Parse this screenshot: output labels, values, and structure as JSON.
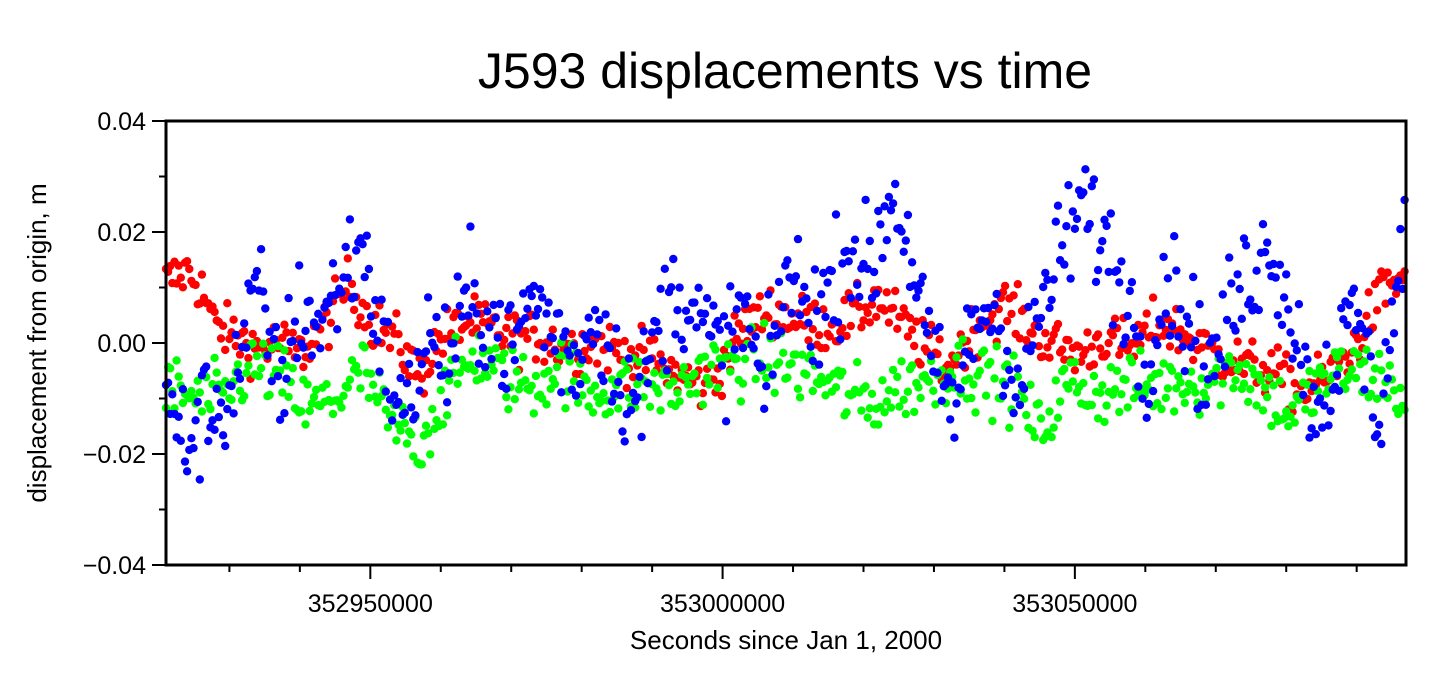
{
  "chart_data": {
    "type": "scatter",
    "title": "J593 displacements vs time",
    "xlabel": "Seconds since Jan 1, 2000",
    "ylabel": "displacement from origin, m",
    "xlim": [
      352921000,
      353097000
    ],
    "ylim": [
      -0.04,
      0.04
    ],
    "x_ticks": [
      352950000,
      353000000,
      353050000
    ],
    "x_tick_labels": [
      "352950000",
      "353000000",
      "353050000"
    ],
    "x_minor_step": 10000,
    "y_ticks": [
      -0.04,
      -0.02,
      0.0,
      0.02,
      0.04
    ],
    "y_tick_labels": [
      "−0.04",
      "−0.02",
      "0.00",
      "0.02",
      "0.04"
    ],
    "y_minor_step": 0.01,
    "grid": false,
    "legend": "none",
    "sample_interval_s": 300,
    "series": [
      {
        "color": "#ff0000",
        "anchors": [
          [
            352921000,
            0.011
          ],
          [
            352924000,
            0.013
          ],
          [
            352926000,
            0.01
          ],
          [
            352928000,
            0.003
          ],
          [
            352931000,
            0.001
          ],
          [
            352934000,
            -0.001
          ],
          [
            352937000,
            0.0
          ],
          [
            352940000,
            -0.002
          ],
          [
            352944000,
            0.004
          ],
          [
            352947000,
            0.011
          ],
          [
            352950000,
            0.004
          ],
          [
            352954000,
            0.0
          ],
          [
            352957000,
            -0.006
          ],
          [
            352960000,
            0.001
          ],
          [
            352964000,
            0.004
          ],
          [
            352968000,
            0.002
          ],
          [
            352971000,
            0.001
          ],
          [
            352974000,
            0.001
          ],
          [
            352978000,
            -0.001
          ],
          [
            352982000,
            0.0
          ],
          [
            352986000,
            -0.002
          ],
          [
            352990000,
            -0.003
          ],
          [
            352994000,
            -0.006
          ],
          [
            352998000,
            -0.008
          ],
          [
            353000000,
            -0.004
          ],
          [
            353003000,
            0.003
          ],
          [
            353007000,
            0.006
          ],
          [
            353011000,
            0.004
          ],
          [
            353015000,
            0.003
          ],
          [
            353019000,
            0.005
          ],
          [
            353022000,
            0.008
          ],
          [
            353025000,
            0.004
          ],
          [
            353028000,
            0.0
          ],
          [
            353032000,
            -0.004
          ],
          [
            353036000,
            0.003
          ],
          [
            353040000,
            0.007
          ],
          [
            353044000,
            0.002
          ],
          [
            353048000,
            -0.001
          ],
          [
            353051000,
            -0.002
          ],
          [
            353054000,
            0.001
          ],
          [
            353058000,
            -0.001
          ],
          [
            353062000,
            0.004
          ],
          [
            353066000,
            0.001
          ],
          [
            353070000,
            -0.002
          ],
          [
            353074000,
            -0.004
          ],
          [
            353078000,
            -0.005
          ],
          [
            353082000,
            -0.009
          ],
          [
            353086000,
            -0.006
          ],
          [
            353090000,
            0.0
          ],
          [
            353094000,
            0.01
          ],
          [
            353097000,
            0.012
          ]
        ],
        "noise": 0.0025
      },
      {
        "color": "#00ff00",
        "anchors": [
          [
            352921000,
            -0.008
          ],
          [
            352925000,
            -0.01
          ],
          [
            352929000,
            -0.01
          ],
          [
            352933000,
            -0.004
          ],
          [
            352937000,
            -0.006
          ],
          [
            352941000,
            -0.012
          ],
          [
            352945000,
            -0.01
          ],
          [
            352949000,
            -0.005
          ],
          [
            352953000,
            -0.015
          ],
          [
            352957000,
            -0.018
          ],
          [
            352961000,
            -0.008
          ],
          [
            352965000,
            -0.002
          ],
          [
            352969000,
            -0.006
          ],
          [
            352973000,
            -0.008
          ],
          [
            352977000,
            -0.004
          ],
          [
            352981000,
            -0.009
          ],
          [
            352985000,
            -0.008
          ],
          [
            352989000,
            -0.007
          ],
          [
            352993000,
            -0.009
          ],
          [
            352997000,
            -0.005
          ],
          [
            353001000,
            -0.004
          ],
          [
            353005000,
            -0.003
          ],
          [
            353009000,
            -0.004
          ],
          [
            353013000,
            -0.006
          ],
          [
            353017000,
            -0.009
          ],
          [
            353021000,
            -0.011
          ],
          [
            353025000,
            -0.008
          ],
          [
            353029000,
            -0.007
          ],
          [
            353033000,
            -0.004
          ],
          [
            353037000,
            -0.006
          ],
          [
            353041000,
            -0.008
          ],
          [
            353045000,
            -0.016
          ],
          [
            353049000,
            -0.007
          ],
          [
            353053000,
            -0.009
          ],
          [
            353057000,
            -0.008
          ],
          [
            353061000,
            -0.008
          ],
          [
            353065000,
            -0.007
          ],
          [
            353069000,
            -0.007
          ],
          [
            353073000,
            -0.004
          ],
          [
            353077000,
            -0.009
          ],
          [
            353081000,
            -0.013
          ],
          [
            353085000,
            -0.007
          ],
          [
            353089000,
            -0.005
          ],
          [
            353093000,
            -0.006
          ],
          [
            353097000,
            -0.01
          ]
        ],
        "noise": 0.0032
      },
      {
        "color": "#0000ff",
        "anchors": [
          [
            352921000,
            -0.012
          ],
          [
            352924000,
            -0.018
          ],
          [
            352927000,
            -0.012
          ],
          [
            352930000,
            -0.01
          ],
          [
            352934000,
            0.01
          ],
          [
            352937000,
            -0.008
          ],
          [
            352940000,
            0.006
          ],
          [
            352943000,
            0.003
          ],
          [
            352946000,
            0.012
          ],
          [
            352949000,
            0.018
          ],
          [
            352952000,
            -0.003
          ],
          [
            352955000,
            -0.014
          ],
          [
            352958000,
            0.002
          ],
          [
            352961000,
            -0.004
          ],
          [
            352964000,
            0.008
          ],
          [
            352967000,
            0.004
          ],
          [
            352970000,
            -0.002
          ],
          [
            352973000,
            0.009
          ],
          [
            352976000,
            0.002
          ],
          [
            352979000,
            -0.004
          ],
          [
            352982000,
            0.006
          ],
          [
            352985000,
            -0.005
          ],
          [
            352988000,
            -0.012
          ],
          [
            352991000,
            0.004
          ],
          [
            352994000,
            0.01
          ],
          [
            352997000,
            0.003
          ],
          [
            353000000,
            -0.002
          ],
          [
            353003000,
            0.006
          ],
          [
            353006000,
            -0.01
          ],
          [
            353009000,
            0.013
          ],
          [
            353012000,
            0.006
          ],
          [
            353015000,
            0.008
          ],
          [
            353018000,
            0.018
          ],
          [
            353021000,
            0.012
          ],
          [
            353024000,
            0.028
          ],
          [
            353027000,
            0.015
          ],
          [
            353030000,
            -0.006
          ],
          [
            353033000,
            -0.012
          ],
          [
            353036000,
            0.005
          ],
          [
            353039000,
            0.006
          ],
          [
            353042000,
            -0.01
          ],
          [
            353045000,
            0.006
          ],
          [
            353048000,
            0.016
          ],
          [
            353051000,
            0.025
          ],
          [
            353054000,
            0.018
          ],
          [
            353057000,
            0.01
          ],
          [
            353060000,
            -0.004
          ],
          [
            353063000,
            0.012
          ],
          [
            353066000,
            0.004
          ],
          [
            353069000,
            -0.006
          ],
          [
            353072000,
            0.005
          ],
          [
            353075000,
            0.013
          ],
          [
            353078000,
            0.018
          ],
          [
            353081000,
            0.004
          ],
          [
            353084000,
            -0.012
          ],
          [
            353087000,
            -0.004
          ],
          [
            353090000,
            0.006
          ],
          [
            353093000,
            -0.014
          ],
          [
            353096000,
            0.012
          ],
          [
            353097000,
            0.02
          ]
        ],
        "noise": 0.0055
      }
    ]
  }
}
